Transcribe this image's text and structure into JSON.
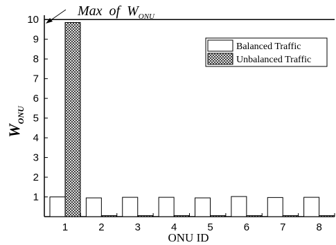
{
  "chart_data": {
    "type": "bar",
    "title": "",
    "xlabel": "ONU ID",
    "ylabel": {
      "main": "W",
      "sub": "ONU"
    },
    "categories": [
      "1",
      "2",
      "3",
      "4",
      "5",
      "6",
      "7",
      "8"
    ],
    "ylim": [
      0,
      10.5
    ],
    "yticks": [
      1,
      2,
      3,
      4,
      5,
      6,
      7,
      8,
      9,
      10
    ],
    "grid": false,
    "legend_position": "top-right",
    "series": [
      {
        "name": "Balanced Traffic",
        "pattern": "none",
        "fill": "#ffffff",
        "values": [
          1.0,
          0.95,
          0.98,
          0.98,
          0.95,
          1.02,
          0.97,
          0.98
        ]
      },
      {
        "name": "Unbalanced Traffic",
        "pattern": "crosshatch",
        "fill": "#ffffff",
        "values": [
          9.85,
          0.05,
          0.05,
          0.05,
          0.05,
          0.05,
          0.05,
          0.05
        ]
      }
    ],
    "reference_line": {
      "value": 10
    }
  },
  "annotation": {
    "text_main": "Max  of  W",
    "text_sub": "ONU"
  }
}
